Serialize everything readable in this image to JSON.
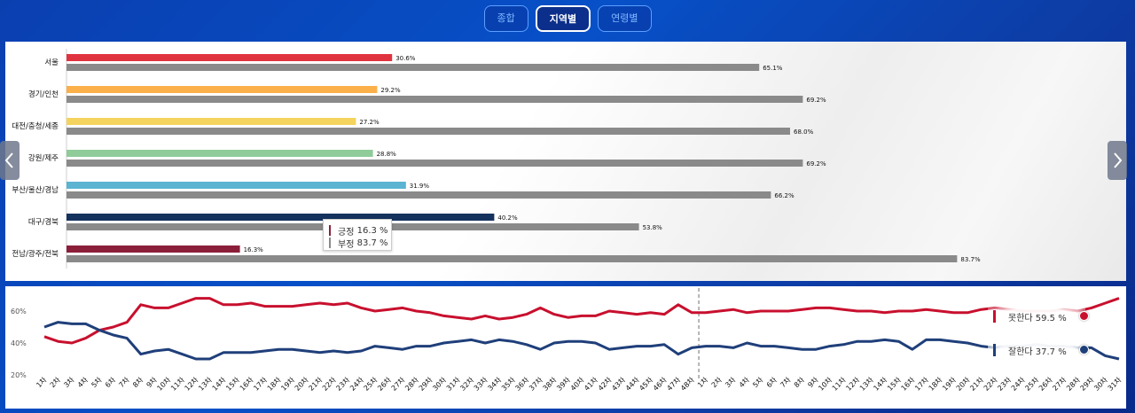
{
  "tabs": [
    {
      "label": "종합",
      "active": false
    },
    {
      "label": "지역별",
      "active": true
    },
    {
      "label": "연령별",
      "active": false
    }
  ],
  "colors": {
    "negative": "#8a8a8a",
    "line_negative": "#c8102e",
    "line_positive": "#1f3f7a"
  },
  "chart_data": [
    {
      "type": "bar",
      "categories": [
        "서울",
        "경기/인천",
        "대전/충청/세종",
        "강원/제주",
        "부산/울산/경남",
        "대구/경북",
        "전남/광주/전북"
      ],
      "series": [
        {
          "name": "긍정",
          "values": [
            30.6,
            29.2,
            27.2,
            28.8,
            31.9,
            40.2,
            16.3
          ],
          "colors": [
            "#e03340",
            "#fbb04a",
            "#f4d35e",
            "#8fcc9a",
            "#5ab4d2",
            "#14325e",
            "#8b1f3a"
          ]
        },
        {
          "name": "부정",
          "values": [
            65.1,
            69.2,
            68.0,
            69.2,
            66.2,
            53.8,
            83.7
          ]
        }
      ],
      "value_labels": {
        "positive": [
          "30.6%",
          "29.2%",
          "27.2%",
          "28.8%",
          "31.9%",
          "40.2%",
          "16.3%"
        ],
        "negative": [
          "65.1%",
          "69.2%",
          "68.0%",
          "69.2%",
          "66.2%",
          "53.8%",
          "83.7%"
        ]
      },
      "tooltip": {
        "category": "전남/광주/전북",
        "rows": [
          {
            "label": "긍정",
            "value": "16.3 %"
          },
          {
            "label": "부정",
            "value": "83.7 %"
          }
        ]
      }
    },
    {
      "type": "line",
      "x": [
        "1차",
        "2차",
        "3차",
        "4차",
        "5차",
        "6차",
        "7차",
        "8차",
        "9차",
        "10차",
        "11차",
        "12차",
        "13차",
        "14차",
        "15차",
        "16차",
        "17차",
        "18차",
        "19차",
        "20차",
        "21차",
        "22차",
        "23차",
        "24차",
        "25차",
        "26차",
        "27차",
        "28차",
        "29차",
        "30차",
        "31차",
        "32차",
        "33차",
        "34차",
        "35차",
        "36차",
        "37차",
        "38차",
        "39차",
        "40차",
        "41차",
        "42차",
        "43차",
        "44차",
        "45차",
        "46차",
        "47차",
        "48차",
        "1차",
        "2차",
        "3차",
        "4차",
        "5차",
        "6차",
        "7차",
        "8차",
        "9차",
        "10차",
        "11차",
        "12차",
        "13차",
        "14차",
        "15차",
        "16차",
        "17차",
        "18차",
        "19차",
        "20차",
        "21차",
        "22차",
        "23차",
        "24차",
        "25차",
        "26차",
        "27차",
        "28차",
        "29차",
        "30차",
        "31차"
      ],
      "yticks": [
        "20%",
        "40%",
        "60%"
      ],
      "ylim": [
        20,
        70
      ],
      "divider_after_index": 47,
      "series": [
        {
          "name": "못한다",
          "values": [
            44,
            41,
            40,
            43,
            48,
            50,
            53,
            64,
            62,
            62,
            65,
            68,
            68,
            64,
            64,
            65,
            63,
            63,
            63,
            64,
            65,
            64,
            65,
            62,
            60,
            61,
            62,
            60,
            59,
            57,
            56,
            55,
            57,
            55,
            56,
            58,
            62,
            58,
            56,
            57,
            57,
            60,
            59,
            58,
            59,
            58,
            64,
            59,
            59,
            60,
            61,
            59,
            60,
            60,
            60,
            61,
            62,
            62,
            61,
            60,
            60,
            59,
            60,
            60,
            61,
            60,
            59,
            59,
            61,
            62,
            61,
            60,
            60,
            60,
            61,
            60,
            62,
            65,
            68
          ]
        },
        {
          "name": "잘한다",
          "values": [
            50,
            53,
            52,
            52,
            48,
            45,
            43,
            33,
            35,
            36,
            33,
            30,
            30,
            34,
            34,
            34,
            35,
            36,
            36,
            35,
            34,
            35,
            34,
            35,
            38,
            37,
            36,
            38,
            38,
            40,
            41,
            42,
            40,
            42,
            41,
            39,
            36,
            40,
            41,
            41,
            40,
            36,
            37,
            38,
            38,
            39,
            33,
            37,
            38,
            38,
            37,
            40,
            38,
            38,
            37,
            36,
            36,
            38,
            39,
            41,
            41,
            42,
            41,
            36,
            42,
            42,
            41,
            40,
            38,
            37,
            38,
            38,
            39,
            38,
            38,
            37,
            37,
            32,
            30
          ]
        }
      ],
      "legend": [
        {
          "label": "못한다 59.5 %"
        },
        {
          "label": "잘한다 37.7 %"
        }
      ]
    }
  ]
}
